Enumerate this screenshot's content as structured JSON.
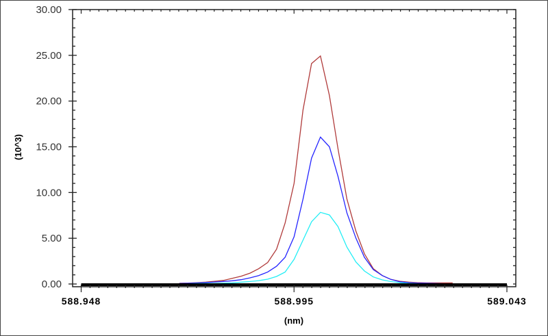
{
  "chart_data": {
    "type": "line",
    "title": "",
    "xlabel": "(nm)",
    "ylabel": "(10^3)",
    "xlim": [
      588.948,
      589.043
    ],
    "ylim": [
      0,
      30
    ],
    "x_tick_labels": [
      "588.948",
      "588.995",
      "589.043"
    ],
    "y_tick_labels": [
      "0.00",
      "5.00",
      "10.00",
      "15.00",
      "20.00",
      "25.00",
      "30.00"
    ],
    "grid": false,
    "legend": "none",
    "x": [
      588.9699,
      588.9719,
      588.9738,
      588.9758,
      588.9778,
      588.9798,
      588.9817,
      588.9837,
      588.9857,
      588.9876,
      588.9896,
      588.9916,
      588.9935,
      588.9955,
      588.9975,
      588.9994,
      589.0014,
      589.0034,
      589.0053,
      589.0073,
      589.0093,
      589.0112,
      589.0132,
      589.0152,
      589.0171,
      589.0191,
      589.0211,
      589.023,
      589.025,
      589.027,
      589.0289,
      589.0309
    ],
    "series": [
      {
        "color": "#b03a3a",
        "values": [
          0.08,
          0.1,
          0.15,
          0.2,
          0.3,
          0.4,
          0.62,
          0.85,
          1.19,
          1.67,
          2.34,
          3.8,
          6.66,
          11.0,
          19.0,
          24.1,
          24.93,
          20.6,
          14.8,
          9.3,
          5.8,
          3.3,
          1.67,
          0.92,
          0.5,
          0.3,
          0.2,
          0.15,
          0.12,
          0.12,
          0.12,
          0.12
        ]
      },
      {
        "color": "#2424ff",
        "values": [
          0.05,
          0.08,
          0.12,
          0.16,
          0.22,
          0.28,
          0.35,
          0.47,
          0.67,
          0.92,
          1.3,
          1.94,
          2.92,
          5.16,
          9.27,
          13.76,
          16.06,
          15.0,
          11.77,
          7.78,
          5.03,
          2.92,
          1.57,
          0.92,
          0.5,
          0.25,
          0.15,
          0.1,
          0.08,
          0.05,
          0.03,
          0.02
        ]
      },
      {
        "color": "#22eef5",
        "values": [
          0.02,
          0.03,
          0.05,
          0.06,
          0.07,
          0.09,
          0.12,
          0.2,
          0.27,
          0.37,
          0.52,
          0.82,
          1.3,
          2.69,
          4.79,
          6.8,
          7.83,
          7.55,
          6.28,
          4.04,
          2.42,
          1.42,
          0.77,
          0.45,
          0.27,
          0.15,
          0.07,
          0.04,
          0.03,
          0.02,
          0.01,
          0.01
        ]
      }
    ]
  }
}
